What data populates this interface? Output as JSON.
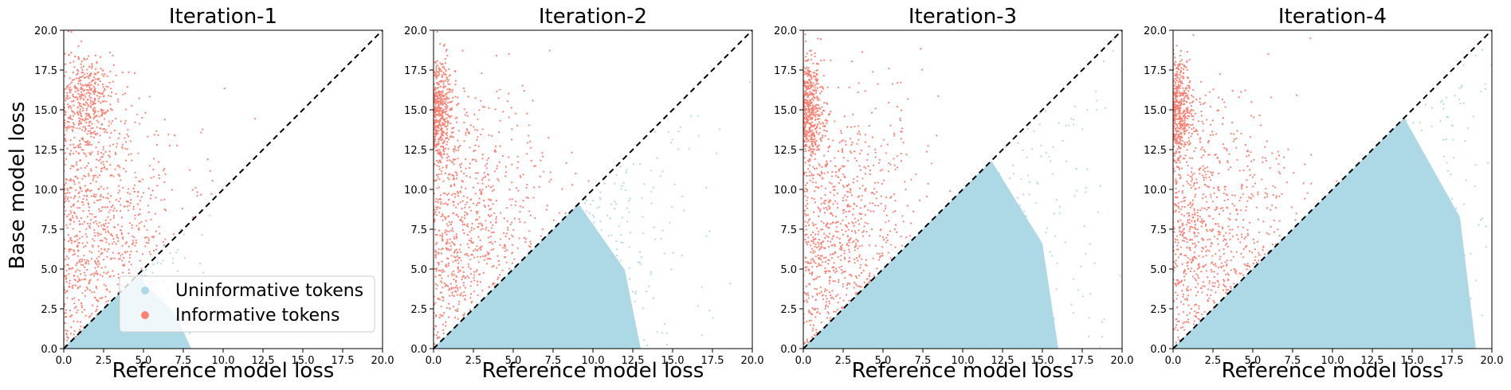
{
  "chart_data": [
    {
      "type": "scatter",
      "title": "Iteration-1",
      "xlabel": "Reference model loss",
      "ylabel": "Base model loss",
      "xlim": [
        0,
        20
      ],
      "ylim": [
        0,
        20
      ],
      "xticks": [
        "0.0",
        "2.5",
        "5.0",
        "7.5",
        "10.0",
        "12.5",
        "15.0",
        "17.5",
        "20.0"
      ],
      "yticks": [
        "0.0",
        "2.5",
        "5.0",
        "7.5",
        "10.0",
        "12.5",
        "15.0",
        "17.5",
        "20.0"
      ],
      "reference_line": {
        "x": [
          0,
          20
        ],
        "y": [
          0,
          20
        ],
        "style": "dashed",
        "color": "#000000"
      },
      "legend": {
        "position": "lower-right",
        "entries": [
          "Uninformative tokens",
          "Informative tokens"
        ]
      },
      "series": [
        {
          "name": "Uninformative tokens",
          "color": "#add8e6",
          "region": "y < x",
          "approx_x_range": [
            0,
            14
          ],
          "density_center": [
            2,
            1
          ]
        },
        {
          "name": "Informative tokens",
          "color": "#fa8072",
          "region": "y > x",
          "approx_x_range": [
            0,
            15
          ],
          "density_center": [
            0.5,
            5
          ],
          "cluster": {
            "x": 1.5,
            "y": 15.5
          }
        }
      ]
    },
    {
      "type": "scatter",
      "title": "Iteration-2",
      "xlabel": "Reference model loss",
      "ylabel": "",
      "xlim": [
        0,
        20
      ],
      "ylim": [
        0,
        20
      ],
      "xticks": [
        "0.0",
        "2.5",
        "5.0",
        "7.5",
        "10.0",
        "12.5",
        "15.0",
        "17.5",
        "20.0"
      ],
      "yticks": [
        "0.0",
        "2.5",
        "5.0",
        "7.5",
        "10.0",
        "12.5",
        "15.0",
        "17.5",
        "20.0"
      ],
      "reference_line": {
        "x": [
          0,
          20
        ],
        "y": [
          0,
          20
        ],
        "style": "dashed",
        "color": "#000000"
      },
      "series": [
        {
          "name": "Uninformative tokens",
          "color": "#add8e6",
          "region": "y < x",
          "approx_x_range": [
            0,
            19
          ],
          "density_center": [
            5,
            2
          ]
        },
        {
          "name": "Informative tokens",
          "color": "#fa8072",
          "region": "y > x",
          "approx_x_range": [
            0,
            15
          ],
          "density_center": [
            0.5,
            6
          ],
          "cluster": {
            "x": 0.3,
            "y": 15
          }
        }
      ]
    },
    {
      "type": "scatter",
      "title": "Iteration-3",
      "xlabel": "Reference model loss",
      "ylabel": "",
      "xlim": [
        0,
        20
      ],
      "ylim": [
        0,
        20
      ],
      "xticks": [
        "0.0",
        "2.5",
        "5.0",
        "7.5",
        "10.0",
        "12.5",
        "15.0",
        "17.5",
        "20.0"
      ],
      "yticks": [
        "0.0",
        "2.5",
        "5.0",
        "7.5",
        "10.0",
        "12.5",
        "15.0",
        "17.5",
        "20.0"
      ],
      "reference_line": {
        "x": [
          0,
          20
        ],
        "y": [
          0,
          20
        ],
        "style": "dashed",
        "color": "#000000"
      },
      "series": [
        {
          "name": "Uninformative tokens",
          "color": "#add8e6",
          "region": "y < x",
          "approx_x_range": [
            0,
            20
          ],
          "density_center": [
            8,
            3
          ]
        },
        {
          "name": "Informative tokens",
          "color": "#fa8072",
          "region": "y > x",
          "approx_x_range": [
            0,
            14
          ],
          "density_center": [
            0.5,
            6
          ],
          "cluster": {
            "x": 0.3,
            "y": 15
          }
        }
      ]
    },
    {
      "type": "scatter",
      "title": "Iteration-4",
      "xlabel": "Reference model loss",
      "ylabel": "",
      "xlim": [
        0,
        20
      ],
      "ylim": [
        0,
        20
      ],
      "xticks": [
        "0.0",
        "2.5",
        "5.0",
        "7.5",
        "10.0",
        "12.5",
        "15.0",
        "17.5",
        "20.0"
      ],
      "yticks": [
        "0.0",
        "2.5",
        "5.0",
        "7.5",
        "10.0",
        "12.5",
        "15.0",
        "17.5",
        "20.0"
      ],
      "reference_line": {
        "x": [
          0,
          20
        ],
        "y": [
          0,
          20
        ],
        "style": "dashed",
        "color": "#000000"
      },
      "series": [
        {
          "name": "Uninformative tokens",
          "color": "#add8e6",
          "region": "y < x",
          "approx_x_range": [
            0,
            20
          ],
          "density_center": [
            11,
            4
          ]
        },
        {
          "name": "Informative tokens",
          "color": "#fa8072",
          "region": "y > x",
          "approx_x_range": [
            0,
            14
          ],
          "density_center": [
            0.5,
            6
          ],
          "cluster": {
            "x": 0.3,
            "y": 15
          }
        }
      ]
    }
  ]
}
